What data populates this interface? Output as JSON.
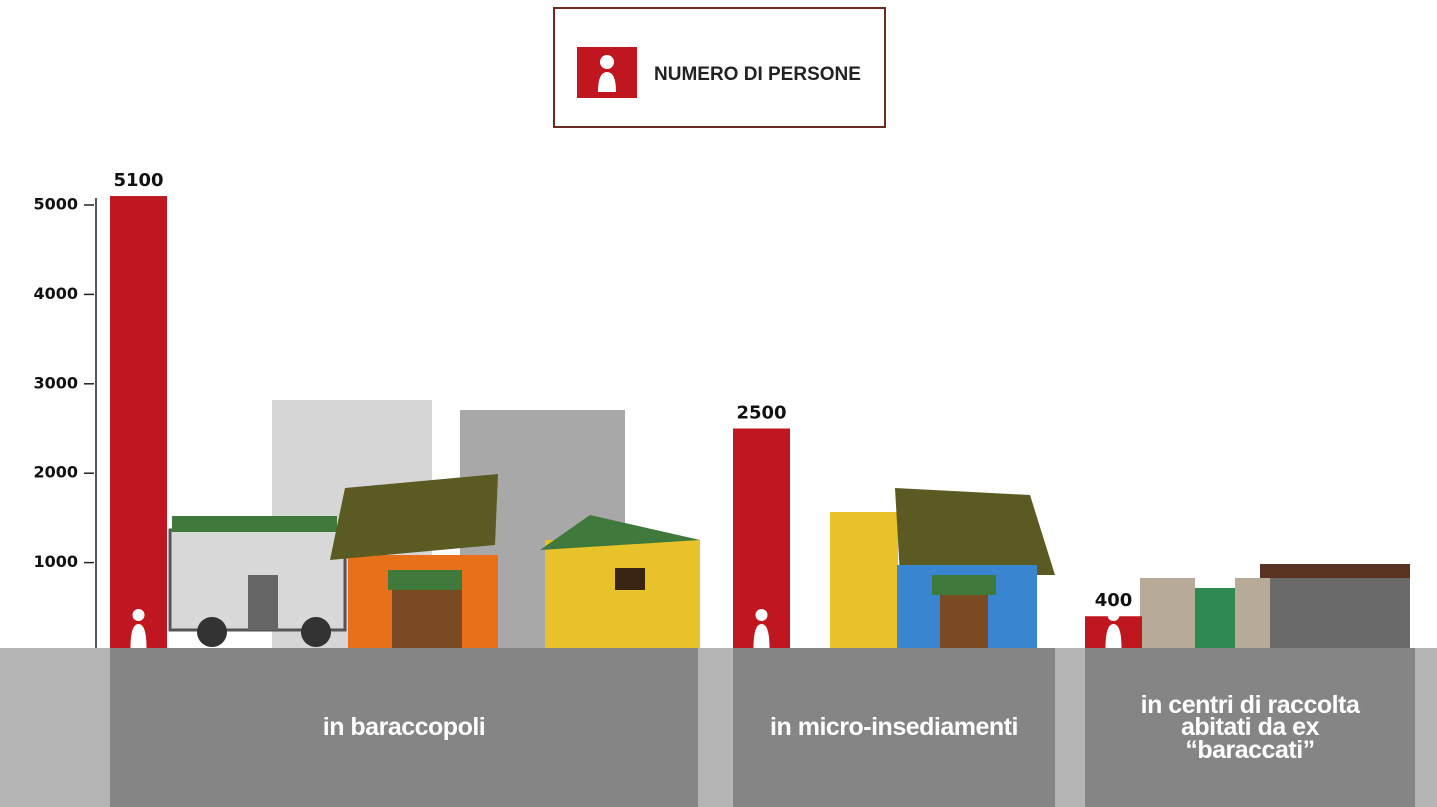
{
  "chart_data": {
    "type": "bar",
    "categories": [
      "in baraccopoli",
      "in micro-insediamenti",
      "in centri di raccolta abitati da ex “baraccati”"
    ],
    "series": [
      {
        "name": "NUMERO DI PERSONE",
        "color": "#c0161f",
        "values": [
          5100,
          2500,
          400
        ]
      }
    ],
    "ylim": [
      0,
      5000
    ],
    "yticks": [
      1000,
      2000,
      3000,
      4000,
      5000
    ]
  }
}
